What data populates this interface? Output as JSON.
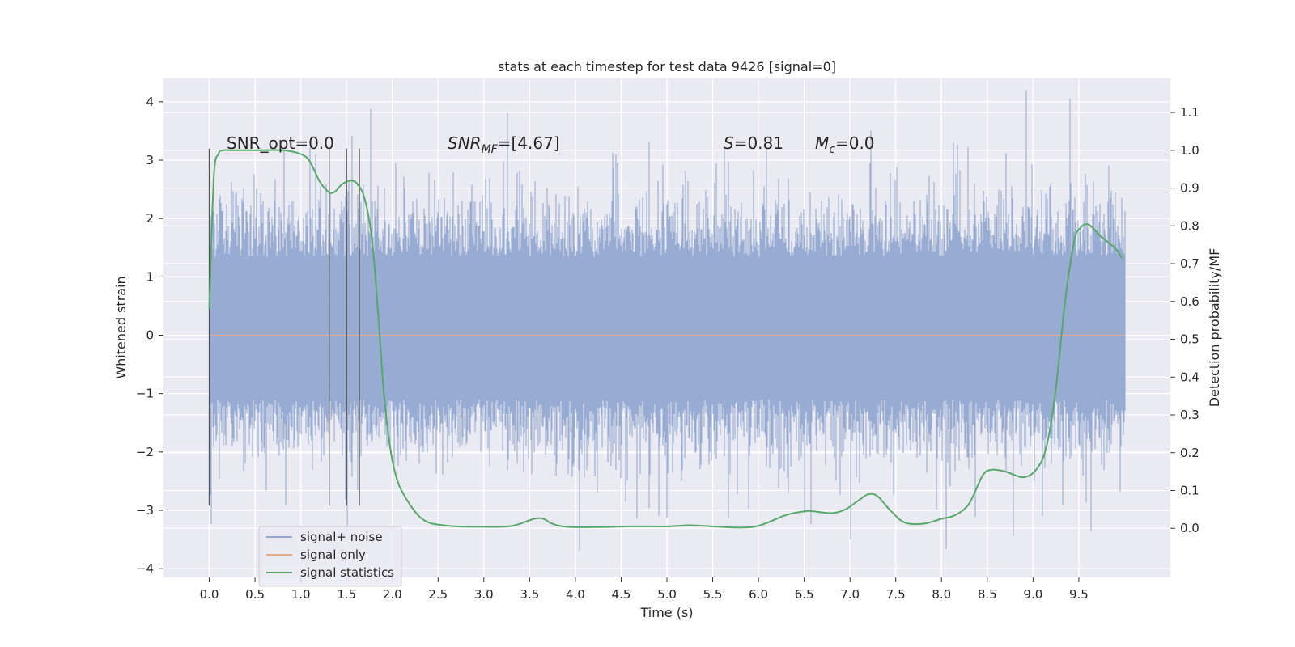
{
  "chart_data": {
    "type": "line",
    "title": "stats at each timestep for test data 9426 [signal=0]",
    "xlabel": "Time (s)",
    "ylabel": "Whitened strain",
    "y2label": "Detection probability/MF",
    "xlim": [
      -0.5,
      10.5
    ],
    "ylim": [
      -4.15,
      4.4
    ],
    "y2lim": [
      -0.13,
      1.19
    ],
    "x_ticks": [
      0.0,
      0.5,
      1.0,
      1.5,
      2.0,
      2.5,
      3.0,
      3.5,
      4.0,
      4.5,
      5.0,
      5.5,
      6.0,
      6.5,
      7.0,
      7.5,
      8.0,
      8.5,
      9.0,
      9.5
    ],
    "x_tick_labels": [
      "0.0",
      "0.5",
      "1.0",
      "1.5",
      "2.0",
      "2.5",
      "3.0",
      "3.5",
      "4.0",
      "4.5",
      "5.0",
      "5.5",
      "6.0",
      "6.5",
      "7.0",
      "7.5",
      "8.0",
      "8.5",
      "9.0",
      "9.5"
    ],
    "y_ticks": [
      -4,
      -3,
      -2,
      -1,
      0,
      1,
      2,
      3,
      4
    ],
    "y_tick_labels": [
      "−4",
      "−3",
      "−2",
      "−1",
      "0",
      "1",
      "2",
      "3",
      "4"
    ],
    "y2_ticks": [
      0.0,
      0.1,
      0.2,
      0.3,
      0.4,
      0.5,
      0.6,
      0.7,
      0.8,
      0.9,
      1.0,
      1.1
    ],
    "y2_tick_labels": [
      "0.0",
      "0.1",
      "0.2",
      "0.3",
      "0.4",
      "0.5",
      "0.6",
      "0.7",
      "0.8",
      "0.9",
      "1.0",
      "1.1"
    ],
    "grid": true,
    "legend_position": "lower-left",
    "annotations": {
      "snr_opt": "SNR_opt=0.0",
      "snr_mf_base": "SNR",
      "snr_mf_sub": "MF",
      "snr_mf_value": "=[4.67]",
      "s_label": "S",
      "s_value": "=0.81",
      "mc_base": "M",
      "mc_sub": "c",
      "mc_value": "=0.0"
    },
    "vertical_markers": [
      0.0,
      1.31,
      1.5,
      1.64
    ],
    "marker_range": [
      -2.92,
      3.2
    ],
    "series": [
      {
        "name": "signal+ noise",
        "color": "#94a8d0",
        "axis": "left",
        "x_range": [
          0.0,
          10.0
        ],
        "noise_core_range": [
          -1.1,
          1.35
        ],
        "notable_peaks": [
          [
            1.16,
            3.1
          ],
          [
            4.8,
            3.3
          ],
          [
            6.08,
            3.2
          ],
          [
            9.4,
            4.05
          ],
          [
            7.0,
            -3.5
          ],
          [
            1.5,
            -3.35
          ],
          [
            9.63,
            -3.35
          ],
          [
            6.5,
            -3.05
          ]
        ]
      },
      {
        "name": "signal only",
        "color": "#e8a68c",
        "axis": "left",
        "x": [
          0.0,
          10.0
        ],
        "values": [
          0.0,
          0.0
        ]
      },
      {
        "name": "signal statistics",
        "color": "#55a868",
        "axis": "right",
        "x": [
          0.0,
          0.05,
          0.1,
          0.15,
          0.25,
          0.5,
          0.8,
          1.0,
          1.1,
          1.2,
          1.3,
          1.37,
          1.45,
          1.55,
          1.62,
          1.7,
          1.78,
          1.85,
          1.9,
          1.95,
          2.0,
          2.05,
          2.1,
          2.2,
          2.3,
          2.4,
          2.5,
          2.7,
          3.0,
          3.3,
          3.55,
          3.65,
          3.75,
          3.9,
          4.2,
          4.6,
          5.0,
          5.25,
          5.5,
          5.75,
          5.95,
          6.1,
          6.3,
          6.5,
          6.6,
          6.8,
          6.95,
          7.1,
          7.2,
          7.3,
          7.45,
          7.6,
          7.8,
          8.0,
          8.15,
          8.3,
          8.45,
          8.55,
          8.7,
          8.9,
          9.05,
          9.15,
          9.25,
          9.35,
          9.45,
          9.5,
          9.58,
          9.65,
          9.75,
          9.9,
          9.97
        ],
        "values": [
          0.58,
          0.93,
          0.99,
          1.0,
          1.0,
          1.0,
          1.0,
          0.99,
          0.97,
          0.92,
          0.89,
          0.89,
          0.91,
          0.92,
          0.91,
          0.87,
          0.76,
          0.55,
          0.38,
          0.26,
          0.18,
          0.13,
          0.1,
          0.06,
          0.03,
          0.015,
          0.01,
          0.005,
          0.004,
          0.006,
          0.025,
          0.025,
          0.012,
          0.004,
          0.003,
          0.005,
          0.005,
          0.008,
          0.005,
          0.002,
          0.004,
          0.015,
          0.035,
          0.045,
          0.045,
          0.04,
          0.05,
          0.075,
          0.09,
          0.085,
          0.045,
          0.015,
          0.012,
          0.025,
          0.035,
          0.065,
          0.14,
          0.155,
          0.15,
          0.135,
          0.16,
          0.22,
          0.37,
          0.6,
          0.76,
          0.79,
          0.805,
          0.795,
          0.77,
          0.74,
          0.715
        ]
      }
    ]
  }
}
